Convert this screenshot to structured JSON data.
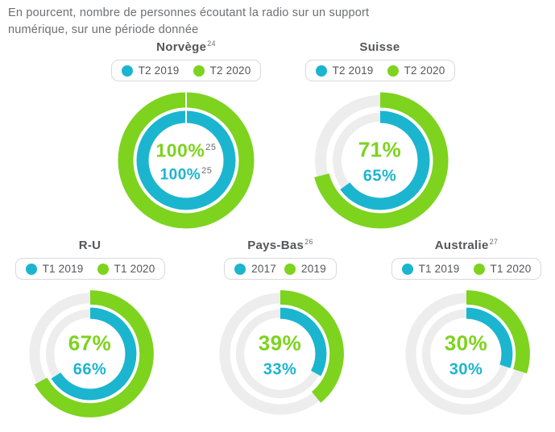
{
  "title": {
    "line1": "En pourcent, nombre de personnes écoutant la radio sur un support",
    "line2": "numérique, sur une période donnée"
  },
  "colors": {
    "teal": "#1cb5cf",
    "green": "#7dd31e",
    "track": "#ededed",
    "title_gray": "#6e6f72",
    "label_gray": "#55565b",
    "legend_border": "#d9d9dc",
    "footnote_gray": "#6d6e70"
  },
  "chart_data": {
    "type": "donut",
    "unit": "percent",
    "rings": {
      "outer": "new period (green)",
      "inner": "old period (teal)"
    },
    "start_angle": "top, clockwise",
    "charts": [
      {
        "country": "Norvège",
        "country_sup": "24",
        "old": {
          "label": "T2 2019",
          "value": 100,
          "display": "100%",
          "sup": "25"
        },
        "new": {
          "label": "T2 2020",
          "value": 100,
          "display": "100%",
          "sup": "25"
        }
      },
      {
        "country": "Suisse",
        "old": {
          "label": "T2 2019",
          "value": 65,
          "display": "65%"
        },
        "new": {
          "label": "T2 2020",
          "value": 71,
          "display": "71%"
        }
      },
      {
        "country": "R-U",
        "old": {
          "label": "T1 2019",
          "value": 66,
          "display": "66%"
        },
        "new": {
          "label": "T1 2020",
          "value": 67,
          "display": "67%"
        }
      },
      {
        "country": "Pays-Bas",
        "country_sup": "26",
        "old": {
          "label": "2017",
          "value": 33,
          "display": "33%"
        },
        "new": {
          "label": "2019",
          "value": 39,
          "display": "39%"
        }
      },
      {
        "country": "Australie",
        "country_sup": "27",
        "old": {
          "label": "T1 2019",
          "value": 30,
          "display": "30%"
        },
        "new": {
          "label": "T1 2020",
          "value": 30,
          "display": "30%"
        }
      }
    ]
  }
}
